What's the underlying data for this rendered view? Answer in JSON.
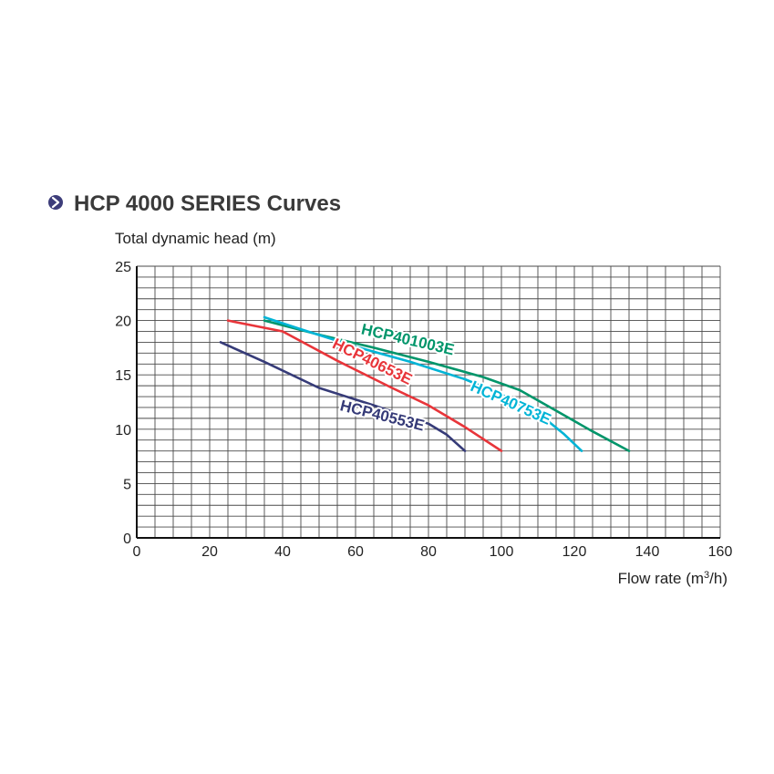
{
  "header": {
    "title": "HCP 4000 SERIES Curves",
    "bullet_icon": "arrow-right-circle-icon",
    "bullet_color": "#3d3d7a"
  },
  "chart_data": {
    "type": "line",
    "title": "HCP 4000 SERIES Curves",
    "ylabel": "Total dynamic head (m)",
    "xlabel_main": "Flow rate (m",
    "xlabel_sup": "3",
    "xlabel_end": "/h)",
    "xlim": [
      0,
      160
    ],
    "ylim": [
      0,
      25
    ],
    "x_ticks": [
      0,
      20,
      40,
      60,
      80,
      100,
      120,
      140,
      160
    ],
    "y_ticks": [
      0,
      5,
      10,
      15,
      20,
      25
    ],
    "grid": true,
    "grid_minor_x": 5,
    "grid_minor_y": 1,
    "series": [
      {
        "name": "HCP401003E",
        "color": "#00956a",
        "points": [
          [
            35,
            20
          ],
          [
            50,
            18.7
          ],
          [
            65,
            17.5
          ],
          [
            80,
            16.2
          ],
          [
            95,
            14.8
          ],
          [
            105,
            13.6
          ],
          [
            115,
            11.7
          ],
          [
            125,
            9.8
          ],
          [
            135,
            8.0
          ]
        ]
      },
      {
        "name": "HCP40753E",
        "color": "#00b4d6",
        "points": [
          [
            35,
            20.3
          ],
          [
            45,
            19.2
          ],
          [
            60,
            17.6
          ],
          [
            75,
            16.2
          ],
          [
            90,
            14.6
          ],
          [
            100,
            13.2
          ],
          [
            110,
            11.5
          ],
          [
            117,
            9.6
          ],
          [
            122,
            8.0
          ]
        ]
      },
      {
        "name": "HCP40653E",
        "color": "#e8353a",
        "points": [
          [
            25,
            20
          ],
          [
            40,
            19
          ],
          [
            55,
            16.3
          ],
          [
            70,
            13.8
          ],
          [
            80,
            12.2
          ],
          [
            90,
            10.2
          ],
          [
            100,
            8.0
          ]
        ]
      },
      {
        "name": "HCP40553E",
        "color": "#363b78",
        "points": [
          [
            23,
            18
          ],
          [
            35,
            16.2
          ],
          [
            50,
            13.8
          ],
          [
            65,
            12.2
          ],
          [
            80,
            10.5
          ],
          [
            85,
            9.5
          ],
          [
            90,
            8.0
          ]
        ]
      }
    ]
  }
}
